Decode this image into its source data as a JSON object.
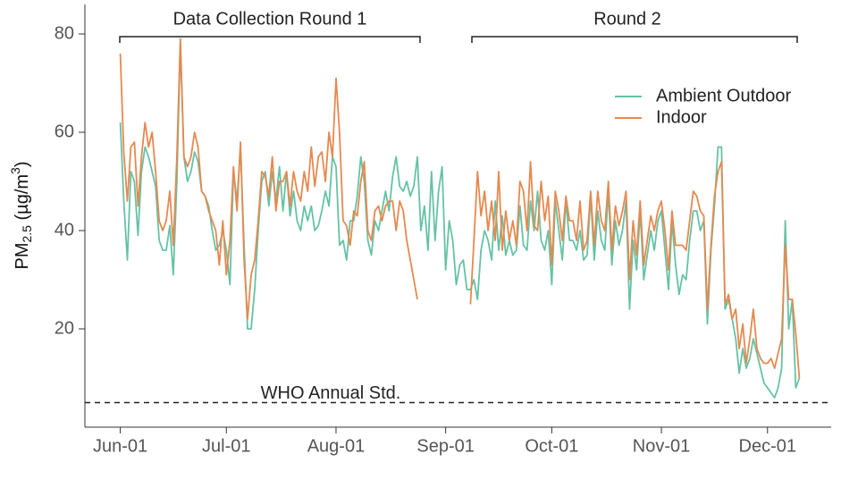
{
  "chart_data": {
    "type": "line",
    "ylabel": [
      "PM",
      "2.5",
      " (µg/m",
      "3",
      ")"
    ],
    "annotations": [
      "Data Collection Round 1",
      "Round 2"
    ],
    "hline": {
      "value": 5,
      "label": "WHO Annual Std."
    },
    "legend": "upper right",
    "xlim": [
      "May-22",
      "Dec-19"
    ],
    "xticks": [
      "Jun-01",
      "Jul-01",
      "Aug-01",
      "Sep-01",
      "Oct-01",
      "Nov-01",
      "Dec-01"
    ],
    "ylim": [
      0,
      86
    ],
    "yticks": [
      20,
      40,
      60,
      80
    ],
    "x": [
      "Jun-01",
      "Jun-02",
      "Jun-03",
      "Jun-04",
      "Jun-05",
      "Jun-06",
      "Jun-07",
      "Jun-08",
      "Jun-09",
      "Jun-10",
      "Jun-11",
      "Jun-12",
      "Jun-13",
      "Jun-14",
      "Jun-15",
      "Jun-16",
      "Jun-17",
      "Jun-18",
      "Jun-19",
      "Jun-20",
      "Jun-21",
      "Jun-22",
      "Jun-23",
      "Jun-24",
      "Jun-25",
      "Jun-26",
      "Jun-27",
      "Jun-28",
      "Jun-29",
      "Jun-30",
      "Jul-01",
      "Jul-02",
      "Jul-03",
      "Jul-04",
      "Jul-05",
      "Jul-06",
      "Jul-07",
      "Jul-08",
      "Jul-09",
      "Jul-10",
      "Jul-11",
      "Jul-12",
      "Jul-13",
      "Jul-14",
      "Jul-15",
      "Jul-16",
      "Jul-17",
      "Jul-18",
      "Jul-19",
      "Jul-20",
      "Jul-21",
      "Jul-22",
      "Jul-23",
      "Jul-24",
      "Jul-25",
      "Jul-26",
      "Jul-27",
      "Jul-28",
      "Jul-29",
      "Jul-30",
      "Jul-31",
      "Aug-01",
      "Aug-02",
      "Aug-03",
      "Aug-04",
      "Aug-05",
      "Aug-06",
      "Aug-07",
      "Aug-08",
      "Aug-09",
      "Aug-10",
      "Aug-11",
      "Aug-12",
      "Aug-13",
      "Aug-14",
      "Aug-15",
      "Aug-16",
      "Aug-17",
      "Aug-18",
      "Aug-19",
      "Aug-20",
      "Aug-21",
      "Aug-22",
      "Aug-23",
      "Aug-24",
      "Aug-25",
      "Aug-26",
      "Aug-27",
      "Aug-28",
      "Aug-29",
      "Aug-30",
      "Aug-31",
      "Sep-01",
      "Sep-02",
      "Sep-03",
      "Sep-04",
      "Sep-05",
      "Sep-06",
      "Sep-07",
      "Sep-08",
      "Sep-09",
      "Sep-10",
      "Sep-11",
      "Sep-12",
      "Sep-13",
      "Sep-14",
      "Sep-15",
      "Sep-16",
      "Sep-17",
      "Sep-18",
      "Sep-19",
      "Sep-20",
      "Sep-21",
      "Sep-22",
      "Sep-23",
      "Sep-24",
      "Sep-25",
      "Sep-26",
      "Sep-27",
      "Sep-28",
      "Sep-29",
      "Sep-30",
      "Oct-01",
      "Oct-02",
      "Oct-03",
      "Oct-04",
      "Oct-05",
      "Oct-06",
      "Oct-07",
      "Oct-08",
      "Oct-09",
      "Oct-10",
      "Oct-11",
      "Oct-12",
      "Oct-13",
      "Oct-14",
      "Oct-15",
      "Oct-16",
      "Oct-17",
      "Oct-18",
      "Oct-19",
      "Oct-20",
      "Oct-21",
      "Oct-22",
      "Oct-23",
      "Oct-24",
      "Oct-25",
      "Oct-26",
      "Oct-27",
      "Oct-28",
      "Oct-29",
      "Oct-30",
      "Oct-31",
      "Nov-01",
      "Nov-02",
      "Nov-03",
      "Nov-04",
      "Nov-05",
      "Nov-06",
      "Nov-07",
      "Nov-08",
      "Nov-09",
      "Nov-10",
      "Nov-11",
      "Nov-12",
      "Nov-13",
      "Nov-14",
      "Nov-15",
      "Nov-16",
      "Nov-17",
      "Nov-18",
      "Nov-19",
      "Nov-20",
      "Nov-21",
      "Nov-22",
      "Nov-23",
      "Nov-24",
      "Nov-25",
      "Nov-26",
      "Nov-27",
      "Nov-28",
      "Nov-29",
      "Nov-30",
      "Dec-01",
      "Dec-02",
      "Dec-03",
      "Dec-04",
      "Dec-05",
      "Dec-06",
      "Dec-07",
      "Dec-08",
      "Dec-09",
      "Dec-10"
    ],
    "series": [
      {
        "name": "Ambient Outdoor",
        "color": "#66c2a5",
        "values": [
          62,
          46,
          34,
          52,
          50,
          39,
          52,
          57,
          55,
          52,
          49,
          38,
          36,
          36,
          41,
          31,
          50,
          78,
          55,
          50,
          52,
          56,
          54,
          48,
          47,
          45,
          40,
          36,
          37,
          40,
          36,
          29,
          52,
          46,
          57,
          37,
          20,
          20,
          28,
          40,
          50,
          52,
          45,
          52,
          46,
          53,
          44,
          52,
          43,
          48,
          42,
          40,
          45,
          42,
          45,
          40,
          41,
          44,
          48,
          45,
          55,
          53,
          37,
          38,
          34,
          42,
          42,
          47,
          55,
          50,
          38,
          35,
          42,
          40,
          44,
          48,
          44,
          51,
          55,
          49,
          48,
          50,
          47,
          49,
          55,
          40,
          45,
          36,
          52,
          38,
          48,
          53,
          32,
          42,
          38,
          29,
          33,
          34,
          28,
          28,
          30,
          26,
          36,
          40,
          38,
          34,
          46,
          36,
          43,
          35,
          38,
          35,
          36,
          45,
          37,
          36,
          46,
          40,
          48,
          38,
          36,
          40,
          29,
          46,
          40,
          34,
          46,
          38,
          38,
          36,
          40,
          34,
          35,
          47,
          34,
          44,
          38,
          36,
          48,
          33,
          42,
          37,
          40,
          46,
          24,
          38,
          32,
          44,
          30,
          35,
          40,
          36,
          42,
          44,
          36,
          28,
          42,
          33,
          27,
          31,
          30,
          38,
          44,
          44,
          40,
          42,
          21,
          36,
          45,
          57,
          57,
          24,
          26,
          22,
          18,
          11,
          16,
          12,
          14,
          18,
          15,
          12,
          9,
          8,
          7,
          6,
          8,
          12,
          42,
          20,
          26,
          8,
          10
        ]
      },
      {
        "name": "Indoor",
        "color": "#e6894f",
        "values": [
          76,
          56,
          46,
          57,
          58,
          45,
          55,
          62,
          57,
          60,
          52,
          42,
          40,
          42,
          48,
          37,
          55,
          79,
          55,
          53,
          55,
          60,
          57,
          48,
          47,
          44,
          42,
          40,
          33,
          42,
          31,
          38,
          53,
          44,
          58,
          34,
          22,
          31,
          34,
          42,
          52,
          51,
          47,
          55,
          44,
          50,
          50,
          52,
          45,
          52,
          48,
          46,
          52,
          48,
          57,
          49,
          55,
          56,
          50,
          60,
          55,
          71,
          60,
          42,
          41,
          37,
          44,
          43,
          50,
          54,
          40,
          38,
          44,
          45,
          42,
          45,
          46,
          46,
          40,
          46,
          44,
          38,
          34,
          30,
          26,
          null,
          null,
          null,
          null,
          null,
          null,
          null,
          null,
          null,
          null,
          null,
          null,
          null,
          null,
          25,
          38,
          52,
          43,
          48,
          40,
          46,
          38,
          52,
          36,
          44,
          38,
          42,
          37,
          50,
          48,
          40,
          54,
          41,
          40,
          50,
          42,
          47,
          33,
          48,
          44,
          38,
          47,
          42,
          42,
          38,
          46,
          36,
          38,
          48,
          37,
          48,
          42,
          40,
          50,
          36,
          45,
          41,
          44,
          48,
          30,
          42,
          35,
          46,
          33,
          38,
          43,
          40,
          44,
          46,
          40,
          32,
          44,
          37,
          37,
          37,
          36,
          42,
          48,
          47,
          44,
          43,
          24,
          37,
          47,
          52,
          54,
          25,
          27,
          22,
          24,
          16,
          21,
          13,
          18,
          24,
          16,
          14,
          13,
          13,
          14,
          12,
          15,
          18,
          37,
          26,
          26,
          19,
          10
        ]
      }
    ]
  }
}
